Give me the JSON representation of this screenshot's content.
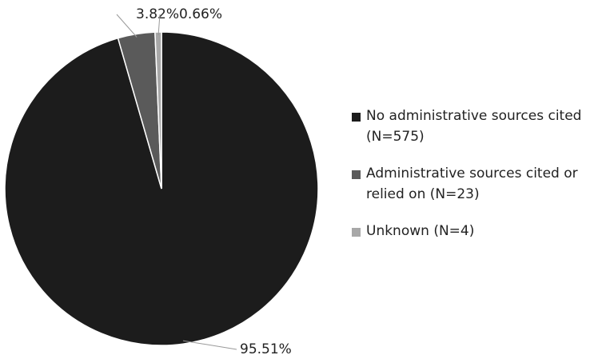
{
  "chart_data": {
    "type": "pie",
    "categories": [
      "No administrative sources cited (N=575)",
      "Administrative sources cited or relied on (N=23)",
      "Unknown (N=4)"
    ],
    "values": [
      95.51,
      3.82,
      0.66
    ],
    "value_labels": [
      "95.51%",
      "3.82%",
      "0.66%"
    ],
    "colors": [
      "#1c1c1c",
      "#5a5a5a",
      "#a8a8a8"
    ],
    "legend": "right"
  }
}
